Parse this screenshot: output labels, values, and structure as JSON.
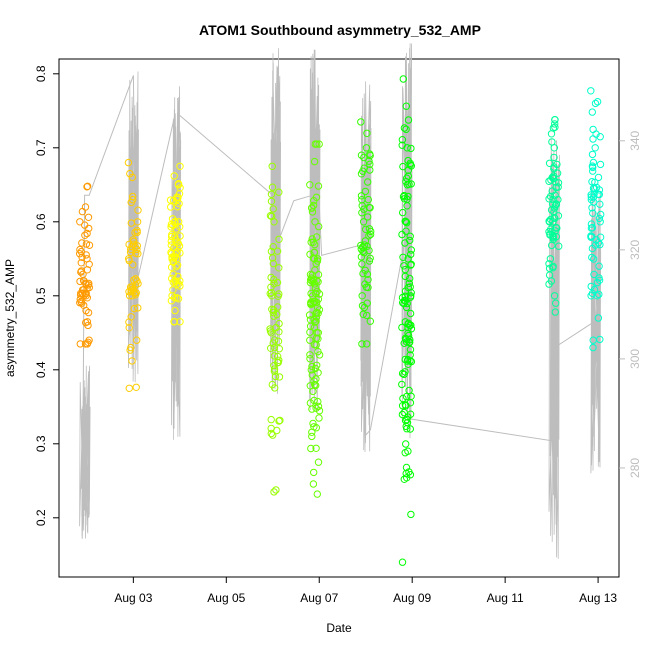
{
  "chart_data": {
    "type": "scatter",
    "title": "ATOM1 Southbound asymmetry_532_AMP",
    "xlabel": "Date",
    "ylabel": "asymmetry_532_AMP",
    "x_ticks": [
      "Aug 03",
      "Aug 05",
      "Aug 07",
      "Aug 09",
      "Aug 11",
      "Aug 13"
    ],
    "x_tick_days": [
      3,
      5,
      7,
      9,
      11,
      13
    ],
    "xlim_days": [
      1.4,
      13.45
    ],
    "ylim": [
      0.12,
      0.82
    ],
    "y_ticks": [
      0.2,
      0.3,
      0.4,
      0.5,
      0.6,
      0.7,
      0.8
    ],
    "y2lim": [
      260,
      355
    ],
    "y2_ticks": [
      280,
      300,
      320,
      340
    ],
    "y2_color": "#bdbdbd",
    "grid": false,
    "legend": "none",
    "point_style": "open-circle",
    "secondary_line_color": "#bdbdbd",
    "clusters": [
      {
        "day": 1.95,
        "color": "#ff9900",
        "y_min": 0.435,
        "y_max": 0.648,
        "n": 60,
        "pts": [
          0.435,
          0.44,
          0.46,
          0.48,
          0.49,
          0.5,
          0.52,
          0.55,
          0.57,
          0.6,
          0.62,
          0.648
        ]
      },
      {
        "day": 3.0,
        "color": "#ffcc00",
        "y_min": 0.375,
        "y_max": 0.68,
        "n": 55,
        "pts": [
          0.375,
          0.43,
          0.44,
          0.5,
          0.52,
          0.55,
          0.6,
          0.63,
          0.66,
          0.68
        ]
      },
      {
        "day": 3.9,
        "color": "#ffff00",
        "y_min": 0.465,
        "y_max": 0.675,
        "n": 70,
        "pts": [
          0.465,
          0.48,
          0.5,
          0.52,
          0.55,
          0.58,
          0.6,
          0.62,
          0.65,
          0.675
        ]
      },
      {
        "day": 6.05,
        "color": "#99ff00",
        "y_min": 0.235,
        "y_max": 0.675,
        "n": 65,
        "pts": [
          0.235,
          0.318,
          0.38,
          0.41,
          0.43,
          0.45,
          0.5,
          0.56,
          0.6,
          0.64,
          0.675
        ]
      },
      {
        "day": 6.9,
        "color": "#66ff00",
        "y_min": 0.232,
        "y_max": 0.705,
        "n": 110,
        "pts": [
          0.232,
          0.357,
          0.38,
          0.415,
          0.44,
          0.45,
          0.5,
          0.55,
          0.6,
          0.65,
          0.705
        ]
      },
      {
        "day": 8.0,
        "color": "#33ff00",
        "y_min": 0.435,
        "y_max": 0.735,
        "n": 60,
        "pts": [
          0.435,
          0.49,
          0.5,
          0.53,
          0.56,
          0.6,
          0.63,
          0.67,
          0.7,
          0.735
        ]
      },
      {
        "day": 8.88,
        "color": "#00ff00",
        "y_min": 0.14,
        "y_max": 0.793,
        "n": 120,
        "pts": [
          0.14,
          0.262,
          0.29,
          0.32,
          0.34,
          0.395,
          0.42,
          0.46,
          0.5,
          0.55,
          0.6,
          0.65,
          0.7,
          0.725,
          0.793
        ]
      },
      {
        "day": 12.05,
        "color": "#00ff99",
        "y_min": 0.478,
        "y_max": 0.738,
        "n": 70,
        "pts": [
          0.478,
          0.49,
          0.5,
          0.52,
          0.55,
          0.58,
          0.6,
          0.63,
          0.66,
          0.7,
          0.738
        ]
      },
      {
        "day": 12.95,
        "color": "#00ffcc",
        "y_min": 0.43,
        "y_max": 0.777,
        "n": 65,
        "pts": [
          0.43,
          0.44,
          0.47,
          0.5,
          0.54,
          0.58,
          0.6,
          0.63,
          0.66,
          0.7,
          0.715,
          0.777
        ]
      }
    ],
    "secondary_series": {
      "name": "",
      "path": [
        [
          1.9,
          267
        ],
        [
          1.95,
          330
        ],
        [
          2.05,
          330
        ],
        [
          3.0,
          352
        ],
        [
          3.05,
          313
        ],
        [
          3.9,
          345
        ],
        [
          3.92,
          326
        ],
        [
          3.95,
          345
        ],
        [
          6.0,
          330
        ],
        [
          6.05,
          320
        ],
        [
          6.45,
          329
        ],
        [
          6.85,
          330
        ],
        [
          6.95,
          338
        ],
        [
          7.05,
          319
        ],
        [
          7.95,
          321
        ],
        [
          8.0,
          286
        ],
        [
          8.1,
          287
        ],
        [
          8.85,
          322
        ],
        [
          8.9,
          290
        ],
        [
          8.95,
          289
        ],
        [
          12.0,
          285
        ],
        [
          12.05,
          302
        ],
        [
          12.95,
          307
        ],
        [
          13.0,
          293
        ]
      ],
      "spikes": [
        {
          "day": 1.95,
          "low": 266,
          "high": 299
        },
        {
          "day": 3.0,
          "low": 293,
          "high": 353
        },
        {
          "day": 3.9,
          "low": 285,
          "high": 351
        },
        {
          "day": 6.05,
          "low": 293,
          "high": 358
        },
        {
          "day": 6.9,
          "low": 290,
          "high": 358
        },
        {
          "day": 8.0,
          "low": 281,
          "high": 352
        },
        {
          "day": 8.88,
          "low": 285,
          "high": 358
        },
        {
          "day": 12.05,
          "low": 263,
          "high": 346
        },
        {
          "day": 12.95,
          "low": 279,
          "high": 335
        }
      ]
    }
  }
}
